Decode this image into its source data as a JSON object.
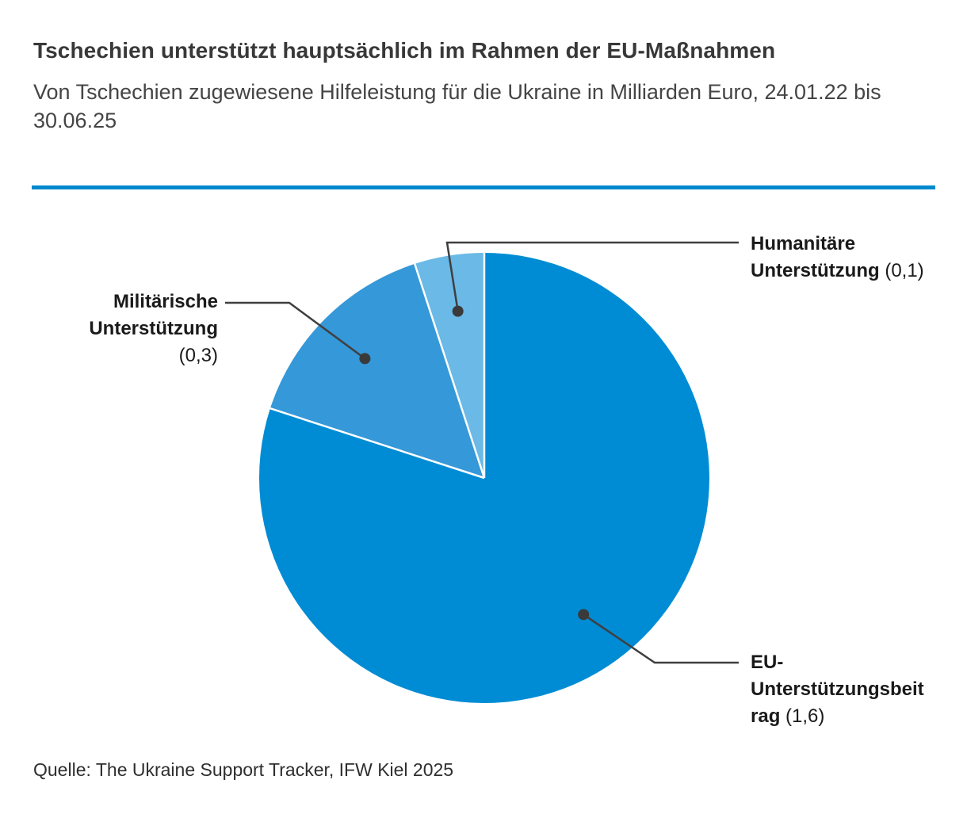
{
  "header": {
    "title": "Tschechien unterstützt hauptsächlich im Rahmen der EU-Maßnahmen",
    "subtitle": "Von Tschechien zugewiesene Hilfeleistung für die Ukraine in Milliarden Euro, 24.01.22 bis 30.06.25",
    "divider_color": "#0088CE"
  },
  "chart_data": {
    "type": "pie",
    "title": "Tschechien unterstützt hauptsächlich im Rahmen der EU-Maßnahmen",
    "subtitle": "Von Tschechien zugewiesene Hilfeleistung für die Ukraine in Milliarden Euro, 24.01.22 bis 30.06.25",
    "unit": "Milliarden Euro",
    "total": 2.0,
    "start_angle_deg": 0,
    "direction": "clockwise",
    "legend_position": "callout-labels",
    "separator_color": "#ffffff",
    "leader_line_color": "#3f3f3f",
    "slices": [
      {
        "label": "EU-Unterstützungsbeitrag",
        "value": 1.6,
        "value_label": "(1,6)",
        "color": "#008CD4"
      },
      {
        "label": "Militärische Unterstützung",
        "value": 0.3,
        "value_label": "(0,3)",
        "color": "#3598D8"
      },
      {
        "label": "Humanitäre Unterstützung",
        "value": 0.1,
        "value_label": "(0,1)",
        "color": "#6AB9E6"
      }
    ]
  },
  "footer": {
    "source": "Quelle: The Ukraine Support Tracker, IFW Kiel 2025"
  }
}
